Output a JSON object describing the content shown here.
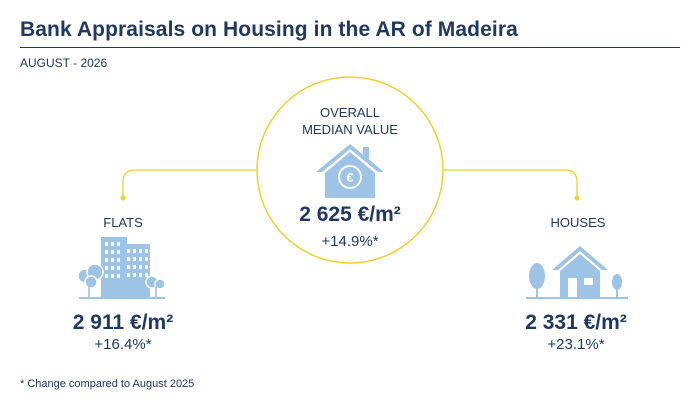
{
  "header": {
    "title": "Bank Appraisals on Housing in the AR of Madeira",
    "subtitle": "AUGUST - 2026"
  },
  "overall": {
    "label_line1": "OVERALL",
    "label_line2": "MEDIAN VALUE",
    "value": "2 625 €/m²",
    "change": "+14.9%*",
    "icon": "house-euro-icon"
  },
  "flats": {
    "label": "FLATS",
    "value": "2 911 €/m²",
    "change": "+16.4%*",
    "icon": "apartment-buildings-icon"
  },
  "houses": {
    "label": "HOUSES",
    "value": "2 331 €/m²",
    "change": "+23.1%*",
    "icon": "house-with-trees-icon"
  },
  "footnote": "* Change compared to August 2025",
  "colors": {
    "text": "#1f3864",
    "icon": "#9dc3e6",
    "accent_line": "#f2cf2c"
  }
}
